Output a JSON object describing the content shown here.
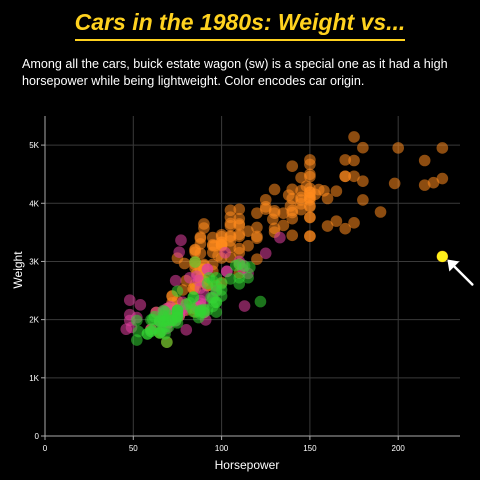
{
  "chart_data": {
    "type": "scatter",
    "title": "Cars in the 1980s: Weight vs...",
    "subtitle": "Among all the cars, buick estate wagon (sw) is a special one as it had a high horsepower while being lightweight. Color encodes car origin.",
    "xlabel": "Horsepower",
    "ylabel": "Weight",
    "xlim": [
      0,
      235
    ],
    "ylim": [
      0,
      5500
    ],
    "x_ticks": [
      0,
      50,
      100,
      150,
      200
    ],
    "x_tick_labels": [
      "0",
      "50",
      "100",
      "150",
      "200"
    ],
    "y_ticks": [
      0,
      1000,
      2000,
      3000,
      4000,
      5000
    ],
    "y_tick_labels": [
      "0",
      "1K",
      "2K",
      "3K",
      "4K",
      "5K"
    ],
    "grid": true,
    "legend": "none",
    "colors": {
      "usa": "#ff8a1e",
      "europe": "#e0409e",
      "japan": "#33d433",
      "highlight": "#ffef1a",
      "title": "#ffd21f"
    },
    "highlight": {
      "x": 225,
      "y": 3086
    },
    "series": [
      {
        "color_key": "usa",
        "points": [
          [
            130,
            3504
          ],
          [
            165,
            3693
          ],
          [
            150,
            3436
          ],
          [
            150,
            3433
          ],
          [
            140,
            3449
          ],
          [
            198,
            4341
          ],
          [
            220,
            4354
          ],
          [
            215,
            4312
          ],
          [
            225,
            4425
          ],
          [
            190,
            3850
          ],
          [
            170,
            3563
          ],
          [
            160,
            3609
          ],
          [
            150,
            3761
          ],
          [
            225,
            3086
          ],
          [
            95,
            2833
          ],
          [
            95,
            3288
          ],
          [
            97,
            2587
          ],
          [
            85,
            2130
          ],
          [
            88,
            2648
          ],
          [
            100,
            2634
          ],
          [
            105,
            3439
          ],
          [
            100,
            3329
          ],
          [
            88,
            3302
          ],
          [
            100,
            3288
          ],
          [
            165,
            4209
          ],
          [
            175,
            4464
          ],
          [
            153,
            4154
          ],
          [
            150,
            4096
          ],
          [
            180,
            4955
          ],
          [
            170,
            4746
          ],
          [
            175,
            5140
          ],
          [
            110,
            2962
          ],
          [
            72,
            2408
          ],
          [
            100,
            3282
          ],
          [
            88,
            3139
          ],
          [
            86,
            2220
          ],
          [
            90,
            2123
          ],
          [
            70,
            2074
          ],
          [
            76,
            2065
          ],
          [
            65,
            1773
          ],
          [
            69,
            1613
          ],
          [
            60,
            1834
          ],
          [
            70,
            1955
          ],
          [
            150,
            4746
          ],
          [
            200,
            4952
          ],
          [
            170,
            4464
          ],
          [
            145,
            4440
          ],
          [
            155,
            4235
          ],
          [
            145,
            3891
          ],
          [
            150,
            4096
          ],
          [
            148,
            4294
          ],
          [
            160,
            4082
          ],
          [
            170,
            4464
          ],
          [
            175,
            4735
          ],
          [
            110,
            3221
          ],
          [
            105,
            3353
          ],
          [
            100,
            3282
          ],
          [
            88,
            3399
          ],
          [
            150,
            3940
          ],
          [
            158,
            4215
          ],
          [
            215,
            4735
          ],
          [
            225,
            4951
          ],
          [
            175,
            3664
          ],
          [
            105,
            3651
          ],
          [
            100,
            3264
          ],
          [
            100,
            3459
          ],
          [
            110,
            3432
          ],
          [
            150,
            4140
          ],
          [
            150,
            4668
          ],
          [
            180,
            4380
          ],
          [
            145,
            4055
          ],
          [
            130,
            3870
          ],
          [
            150,
            3755
          ],
          [
            140,
            3877
          ],
          [
            98,
            3102
          ],
          [
            80,
            2164
          ],
          [
            85,
            2189
          ],
          [
            72,
            2401
          ],
          [
            110,
            3465
          ],
          [
            120,
            3039
          ],
          [
            150,
            4190
          ],
          [
            150,
            4457
          ],
          [
            140,
            4638
          ],
          [
            150,
            4257
          ],
          [
            105,
            3613
          ],
          [
            100,
            3425
          ],
          [
            75,
            3057
          ],
          [
            85,
            3158
          ],
          [
            90,
            3574
          ],
          [
            90,
            3645
          ],
          [
            85,
            3193
          ],
          [
            180,
            4057
          ],
          [
            145,
            3990
          ],
          [
            130,
            4237
          ],
          [
            150,
            4498
          ],
          [
            110,
            3897
          ],
          [
            105,
            3880
          ],
          [
            140,
            4080
          ],
          [
            150,
            4058
          ],
          [
            95,
            3270
          ],
          [
            120,
            3830
          ],
          [
            140,
            4240
          ],
          [
            150,
            4190
          ],
          [
            129,
            3725
          ],
          [
            100,
            3330
          ],
          [
            125,
            3900
          ],
          [
            125,
            4060
          ],
          [
            138,
            4140
          ],
          [
            145,
            4100
          ],
          [
            135,
            3830
          ],
          [
            125,
            3940
          ],
          [
            145,
            4215
          ],
          [
            120,
            3430
          ],
          [
            130,
            3570
          ],
          [
            140,
            3840
          ],
          [
            130,
            3830
          ],
          [
            100,
            3060
          ],
          [
            105,
            3070
          ],
          [
            85,
            2950
          ],
          [
            88,
            3420
          ],
          [
            110,
            3620
          ],
          [
            140,
            3735
          ],
          [
            139,
            3955
          ],
          [
            135,
            3620
          ],
          [
            150,
            3955
          ],
          [
            115,
            3270
          ],
          [
            105,
            3245
          ],
          [
            90,
            2670
          ],
          [
            110,
            3645
          ],
          [
            85,
            3205
          ],
          [
            120,
            3585
          ],
          [
            95,
            3410
          ],
          [
            105,
            3425
          ],
          [
            110,
            3735
          ],
          [
            95,
            3155
          ],
          [
            90,
            2650
          ],
          [
            85,
            2990
          ],
          [
            88,
            2870
          ],
          [
            115,
            3520
          ],
          [
            63,
            2125
          ],
          [
            70,
            2200
          ],
          [
            110,
            2800
          ],
          [
            85,
            2600
          ],
          [
            90,
            2865
          ],
          [
            92,
            2585
          ],
          [
            88,
            2720
          ],
          [
            84,
            2525
          ],
          [
            90,
            2950
          ],
          [
            90,
            2930
          ],
          [
            105,
            3760
          ],
          [
            70,
            2120
          ],
          [
            88,
            2230
          ],
          [
            79,
            2965
          ],
          [
            120,
            3400
          ],
          [
            85,
            2890
          ],
          [
            80,
            2265
          ],
          [
            74,
            2190
          ],
          [
            68,
            2045
          ],
          [
            92,
            2585
          ],
          [
            90,
            2865
          ],
          [
            80,
            2670
          ],
          [
            85,
            2990
          ],
          [
            110,
            3150
          ],
          [
            78,
            2510
          ],
          [
            75,
            2320
          ],
          [
            85,
            2525
          ],
          [
            84,
            2540
          ],
          [
            95,
            2950
          ],
          [
            71,
            2190
          ],
          [
            88,
            2700
          ],
          [
            90,
            2740
          ],
          [
            86,
            2790
          ],
          [
            96,
            3270
          ],
          [
            72,
            2290
          ]
        ]
      },
      {
        "color_key": "europe",
        "points": [
          [
            46,
            1835
          ],
          [
            87,
            2672
          ],
          [
            90,
            2430
          ],
          [
            95,
            2375
          ],
          [
            113,
            2234
          ],
          [
            90,
            2123
          ],
          [
            70,
            2074
          ],
          [
            76,
            2065
          ],
          [
            112,
            2933
          ],
          [
            88,
            2279
          ],
          [
            54,
            2254
          ],
          [
            49,
            1867
          ],
          [
            75,
            2155
          ],
          [
            91,
            1995
          ],
          [
            112,
            2868
          ],
          [
            71,
            2223
          ],
          [
            78,
            2300
          ],
          [
            48,
            1985
          ],
          [
            60,
            1834
          ],
          [
            67,
            2145
          ],
          [
            69,
            2189
          ],
          [
            86,
            2220
          ],
          [
            92,
            2865
          ],
          [
            97,
            2489
          ],
          [
            80,
            1825
          ],
          [
            88,
            2330
          ],
          [
            102,
            3150
          ],
          [
            78,
            2190
          ],
          [
            115,
            2795
          ],
          [
            71,
            1985
          ],
          [
            86,
            2745
          ],
          [
            125,
            3140
          ],
          [
            103,
            2830
          ],
          [
            48,
            2335
          ],
          [
            67,
            2000
          ],
          [
            65,
            1975
          ],
          [
            78,
            2145
          ],
          [
            52,
            2035
          ],
          [
            76,
            3160
          ],
          [
            133,
            3410
          ],
          [
            88,
            2542
          ],
          [
            65,
            1968
          ],
          [
            69,
            1850
          ],
          [
            82,
            2720
          ],
          [
            103,
            2830
          ],
          [
            74,
            1980
          ],
          [
            67,
            2130
          ],
          [
            48,
            2085
          ],
          [
            76,
            2144
          ],
          [
            74,
            2670
          ],
          [
            92,
            2865
          ],
          [
            77,
            3365
          ],
          [
            110,
            3000
          ],
          [
            70,
            1945
          ],
          [
            63,
            2125
          ],
          [
            90,
            2265
          ]
        ]
      },
      {
        "color_key": "japan",
        "points": [
          [
            95,
            2372
          ],
          [
            88,
            2130
          ],
          [
            97,
            2130
          ],
          [
            65,
            1773
          ],
          [
            69,
            1613
          ],
          [
            61,
            2003
          ],
          [
            95,
            2228
          ],
          [
            97,
            2506
          ],
          [
            92,
            2164
          ],
          [
            88,
            2100
          ],
          [
            94,
            2379
          ],
          [
            90,
            2124
          ],
          [
            122,
            2310
          ],
          [
            67,
            1965
          ],
          [
            83,
            2200
          ],
          [
            75,
            2164
          ],
          [
            60,
            1800
          ],
          [
            52,
            1649
          ],
          [
            70,
            1990
          ],
          [
            75,
            2155
          ],
          [
            108,
            2930
          ],
          [
            68,
            1755
          ],
          [
            70,
            2070
          ],
          [
            53,
            1795
          ],
          [
            72,
            1990
          ],
          [
            100,
            2511
          ],
          [
            68,
            1985
          ],
          [
            75,
            2075
          ],
          [
            97,
            2565
          ],
          [
            58,
            1755
          ],
          [
            60,
            1800
          ],
          [
            97,
            2720
          ],
          [
            68,
            1875
          ],
          [
            67,
            1965
          ],
          [
            62,
            1845
          ],
          [
            60,
            1995
          ],
          [
            66,
            1800
          ],
          [
            65,
            1975
          ],
          [
            84,
            2385
          ],
          [
            75,
            1945
          ],
          [
            62,
            2050
          ],
          [
            97,
            2300
          ],
          [
            96,
            2300
          ],
          [
            110,
            2720
          ],
          [
            70,
            1875
          ],
          [
            75,
            2050
          ],
          [
            65,
            1985
          ],
          [
            75,
            2490
          ],
          [
            88,
            2150
          ],
          [
            110,
            2615
          ],
          [
            93,
            2720
          ],
          [
            75,
            2125
          ],
          [
            95,
            2665
          ],
          [
            68,
            2135
          ],
          [
            116,
            2900
          ],
          [
            58,
            1755
          ],
          [
            52,
            1985
          ],
          [
            84,
            2140
          ],
          [
            67,
            2155
          ],
          [
            72,
            1990
          ],
          [
            75,
            2160
          ],
          [
            65,
            1773
          ],
          [
            100,
            2615
          ],
          [
            92,
            2620
          ],
          [
            113,
            2920
          ],
          [
            105,
            2700
          ],
          [
            67,
            2065
          ],
          [
            110,
            2950
          ],
          [
            85,
            2990
          ],
          [
            87,
            2035
          ],
          [
            74,
            1985
          ],
          [
            97,
            2300
          ],
          [
            88,
            2160
          ],
          [
            115,
            2720
          ],
          [
            82,
            2290
          ],
          [
            75,
            2045
          ],
          [
            84,
            2385
          ],
          [
            80,
            2265
          ],
          [
            100,
            2405
          ],
          [
            90,
            2175
          ]
        ]
      }
    ]
  }
}
